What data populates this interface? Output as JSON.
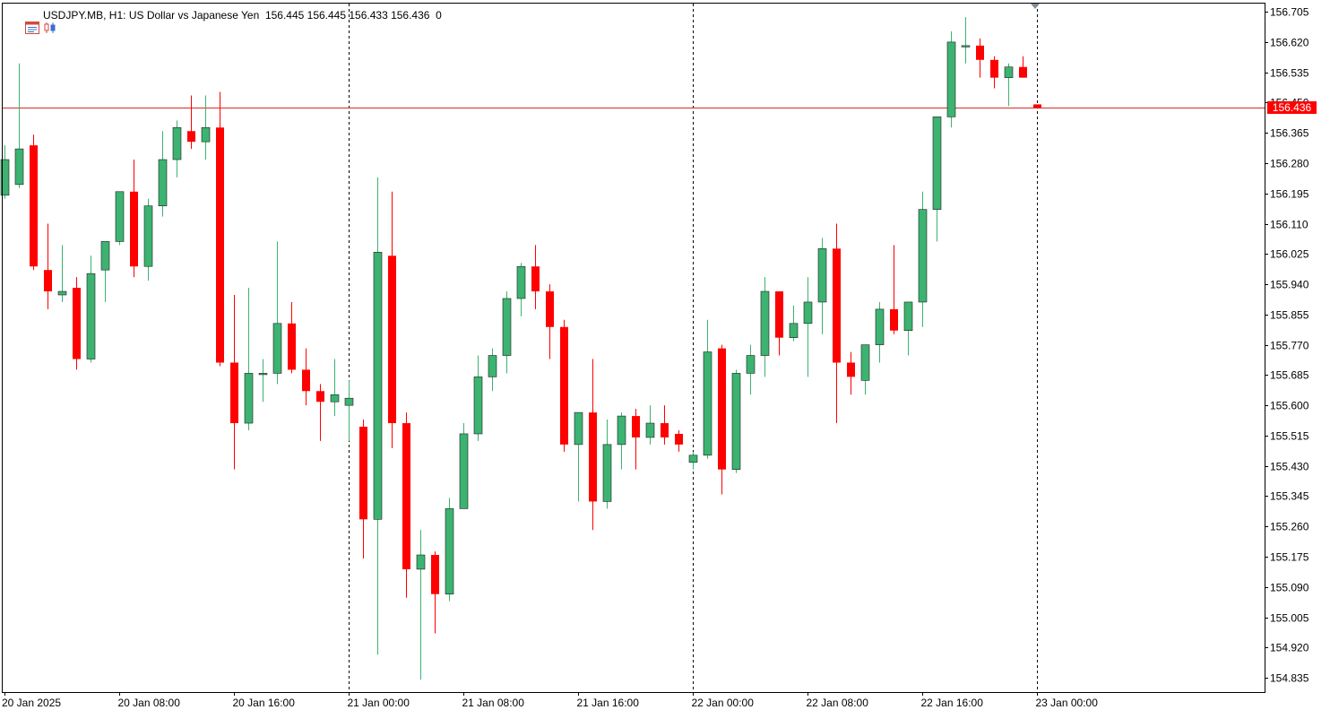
{
  "header": {
    "symbol": "USDJPY.MB, H1:",
    "description": "US Dollar vs Japanese Yen",
    "ohlc": "156.445 156.445 156.433 156.436",
    "volume": "0",
    "icons": [
      "chart-window-icon",
      "candles-toggle-icon"
    ]
  },
  "current_price_label": "156.436",
  "colors": {
    "bull": "#3cb371",
    "bear": "#ff0000",
    "current_line": "#d32f2f",
    "grid": "#000000",
    "axis_text": "#000000"
  },
  "chart_data": {
    "type": "candlestick",
    "symbol": "USDJPY.MB",
    "timeframe": "H1",
    "y_ticks": [
      156.705,
      156.62,
      156.535,
      156.45,
      156.365,
      156.28,
      156.195,
      156.11,
      156.025,
      155.94,
      155.855,
      155.77,
      155.685,
      155.6,
      155.515,
      155.43,
      155.345,
      155.26,
      155.175,
      155.09,
      155.005,
      154.92,
      154.835
    ],
    "y_tick_labels": [
      "156.705",
      "156.620",
      "156.535",
      "156.450",
      "156.365",
      "156.280",
      "156.195",
      "156.110",
      "156.025",
      "155.940",
      "155.855",
      "155.770",
      "155.685",
      "155.600",
      "155.515",
      "155.430",
      "155.345",
      "155.260",
      "155.175",
      "155.090",
      "155.005",
      "154.920",
      "154.835"
    ],
    "ylim": [
      154.795,
      156.728
    ],
    "x_ticks": [
      {
        "index": 0,
        "label": "20 Jan 2025"
      },
      {
        "index": 8,
        "label": "20 Jan 08:00"
      },
      {
        "index": 16,
        "label": "20 Jan 16:00"
      },
      {
        "index": 24,
        "label": "21 Jan 00:00"
      },
      {
        "index": 32,
        "label": "21 Jan 08:00"
      },
      {
        "index": 40,
        "label": "21 Jan 16:00"
      },
      {
        "index": 48,
        "label": "22 Jan 00:00"
      },
      {
        "index": 56,
        "label": "22 Jan 08:00"
      },
      {
        "index": 64,
        "label": "22 Jan 16:00"
      },
      {
        "index": 72,
        "label": "23 Jan 00:00"
      }
    ],
    "period_separators": [
      24,
      48,
      72
    ],
    "current_price": 156.436,
    "candles": [
      {
        "o": 156.19,
        "h": 156.33,
        "l": 156.18,
        "c": 156.29
      },
      {
        "o": 156.22,
        "h": 156.56,
        "l": 156.21,
        "c": 156.32
      },
      {
        "o": 156.33,
        "h": 156.36,
        "l": 155.98,
        "c": 155.99
      },
      {
        "o": 155.98,
        "h": 156.11,
        "l": 155.87,
        "c": 155.92
      },
      {
        "o": 155.91,
        "h": 156.05,
        "l": 155.89,
        "c": 155.92
      },
      {
        "o": 155.93,
        "h": 155.96,
        "l": 155.7,
        "c": 155.73
      },
      {
        "o": 155.73,
        "h": 156.02,
        "l": 155.72,
        "c": 155.97
      },
      {
        "o": 155.98,
        "h": 156.06,
        "l": 155.89,
        "c": 156.06
      },
      {
        "o": 156.06,
        "h": 156.2,
        "l": 156.05,
        "c": 156.2
      },
      {
        "o": 156.2,
        "h": 156.29,
        "l": 155.96,
        "c": 155.99
      },
      {
        "o": 155.99,
        "h": 156.18,
        "l": 155.95,
        "c": 156.16
      },
      {
        "o": 156.16,
        "h": 156.37,
        "l": 156.13,
        "c": 156.29
      },
      {
        "o": 156.29,
        "h": 156.4,
        "l": 156.24,
        "c": 156.38
      },
      {
        "o": 156.37,
        "h": 156.47,
        "l": 156.32,
        "c": 156.34
      },
      {
        "o": 156.34,
        "h": 156.47,
        "l": 156.29,
        "c": 156.38
      },
      {
        "o": 156.38,
        "h": 156.48,
        "l": 155.71,
        "c": 155.72
      },
      {
        "o": 155.72,
        "h": 155.91,
        "l": 155.42,
        "c": 155.55
      },
      {
        "o": 155.55,
        "h": 155.93,
        "l": 155.53,
        "c": 155.69
      },
      {
        "o": 155.69,
        "h": 155.73,
        "l": 155.61,
        "c": 155.69
      },
      {
        "o": 155.69,
        "h": 156.06,
        "l": 155.66,
        "c": 155.83
      },
      {
        "o": 155.83,
        "h": 155.89,
        "l": 155.69,
        "c": 155.7
      },
      {
        "o": 155.7,
        "h": 155.76,
        "l": 155.6,
        "c": 155.64
      },
      {
        "o": 155.64,
        "h": 155.66,
        "l": 155.5,
        "c": 155.61
      },
      {
        "o": 155.61,
        "h": 155.73,
        "l": 155.57,
        "c": 155.63
      },
      {
        "o": 155.6,
        "h": 155.67,
        "l": 155.5,
        "c": 155.62
      },
      {
        "o": 155.54,
        "h": 155.56,
        "l": 155.17,
        "c": 155.28
      },
      {
        "o": 155.28,
        "h": 156.24,
        "l": 154.9,
        "c": 156.03
      },
      {
        "o": 156.02,
        "h": 156.2,
        "l": 155.48,
        "c": 155.55
      },
      {
        "o": 155.55,
        "h": 155.58,
        "l": 155.06,
        "c": 155.14
      },
      {
        "o": 155.14,
        "h": 155.25,
        "l": 154.83,
        "c": 155.18
      },
      {
        "o": 155.18,
        "h": 155.19,
        "l": 154.96,
        "c": 155.07
      },
      {
        "o": 155.07,
        "h": 155.34,
        "l": 155.05,
        "c": 155.31
      },
      {
        "o": 155.31,
        "h": 155.55,
        "l": 155.31,
        "c": 155.52
      },
      {
        "o": 155.52,
        "h": 155.74,
        "l": 155.5,
        "c": 155.68
      },
      {
        "o": 155.68,
        "h": 155.76,
        "l": 155.64,
        "c": 155.74
      },
      {
        "o": 155.74,
        "h": 155.92,
        "l": 155.69,
        "c": 155.9
      },
      {
        "o": 155.9,
        "h": 156.0,
        "l": 155.85,
        "c": 155.99
      },
      {
        "o": 155.99,
        "h": 156.05,
        "l": 155.87,
        "c": 155.92
      },
      {
        "o": 155.92,
        "h": 155.94,
        "l": 155.73,
        "c": 155.82
      },
      {
        "o": 155.82,
        "h": 155.84,
        "l": 155.47,
        "c": 155.49
      },
      {
        "o": 155.49,
        "h": 155.58,
        "l": 155.33,
        "c": 155.58
      },
      {
        "o": 155.58,
        "h": 155.73,
        "l": 155.25,
        "c": 155.33
      },
      {
        "o": 155.33,
        "h": 155.56,
        "l": 155.31,
        "c": 155.49
      },
      {
        "o": 155.49,
        "h": 155.58,
        "l": 155.42,
        "c": 155.57
      },
      {
        "o": 155.57,
        "h": 155.59,
        "l": 155.42,
        "c": 155.51
      },
      {
        "o": 155.51,
        "h": 155.6,
        "l": 155.49,
        "c": 155.55
      },
      {
        "o": 155.55,
        "h": 155.6,
        "l": 155.49,
        "c": 155.51
      },
      {
        "o": 155.52,
        "h": 155.53,
        "l": 155.47,
        "c": 155.49
      },
      {
        "o": 155.44,
        "h": 155.47,
        "l": 155.42,
        "c": 155.46
      },
      {
        "o": 155.46,
        "h": 155.84,
        "l": 155.45,
        "c": 155.75
      },
      {
        "o": 155.76,
        "h": 155.77,
        "l": 155.35,
        "c": 155.42
      },
      {
        "o": 155.42,
        "h": 155.7,
        "l": 155.41,
        "c": 155.69
      },
      {
        "o": 155.69,
        "h": 155.77,
        "l": 155.63,
        "c": 155.74
      },
      {
        "o": 155.74,
        "h": 155.96,
        "l": 155.68,
        "c": 155.92
      },
      {
        "o": 155.92,
        "h": 155.92,
        "l": 155.74,
        "c": 155.79
      },
      {
        "o": 155.79,
        "h": 155.88,
        "l": 155.78,
        "c": 155.83
      },
      {
        "o": 155.83,
        "h": 155.96,
        "l": 155.68,
        "c": 155.89
      },
      {
        "o": 155.89,
        "h": 156.07,
        "l": 155.8,
        "c": 156.04
      },
      {
        "o": 156.04,
        "h": 156.11,
        "l": 155.55,
        "c": 155.72
      },
      {
        "o": 155.72,
        "h": 155.75,
        "l": 155.63,
        "c": 155.68
      },
      {
        "o": 155.67,
        "h": 155.77,
        "l": 155.63,
        "c": 155.77
      },
      {
        "o": 155.77,
        "h": 155.89,
        "l": 155.72,
        "c": 155.87
      },
      {
        "o": 155.87,
        "h": 156.05,
        "l": 155.8,
        "c": 155.81
      },
      {
        "o": 155.81,
        "h": 155.89,
        "l": 155.74,
        "c": 155.89
      },
      {
        "o": 155.89,
        "h": 156.2,
        "l": 155.82,
        "c": 156.15
      },
      {
        "o": 156.15,
        "h": 156.41,
        "l": 156.06,
        "c": 156.41
      },
      {
        "o": 156.41,
        "h": 156.65,
        "l": 156.38,
        "c": 156.62
      },
      {
        "o": 156.61,
        "h": 156.69,
        "l": 156.56,
        "c": 156.61
      },
      {
        "o": 156.61,
        "h": 156.63,
        "l": 156.52,
        "c": 156.57
      },
      {
        "o": 156.57,
        "h": 156.58,
        "l": 156.49,
        "c": 156.52
      },
      {
        "o": 156.52,
        "h": 156.56,
        "l": 156.44,
        "c": 156.55
      },
      {
        "o": 156.55,
        "h": 156.58,
        "l": 156.52,
        "c": 156.52
      },
      {
        "o": 156.445,
        "h": 156.445,
        "l": 156.433,
        "c": 156.436
      }
    ]
  }
}
